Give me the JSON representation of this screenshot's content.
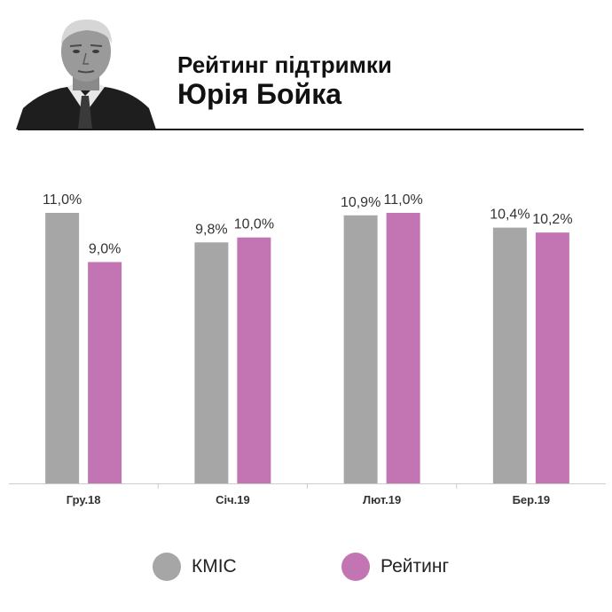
{
  "header": {
    "title_line1": "Рейтинг підтримки",
    "title_line2": "Юрія Бойка"
  },
  "colors": {
    "kmis": "#a6a6a6",
    "rating": "#c374b3",
    "axis": "#cccccc",
    "text": "#333333"
  },
  "legend": {
    "kmis_label": "КМІС",
    "rating_label": "Рейтинг"
  },
  "chart_data": {
    "type": "bar",
    "title": "",
    "categories": [
      "Гру.18",
      "Січ.19",
      "Лют.19",
      "Бер.19"
    ],
    "series": [
      {
        "name": "КМІС",
        "values": [
          11.0,
          9.8,
          10.9,
          10.4
        ],
        "labels": [
          "11,0%",
          "9,8%",
          "10,9%",
          "10,4%"
        ]
      },
      {
        "name": "Рейтинг",
        "values": [
          9.0,
          10.0,
          11.0,
          10.2
        ],
        "labels": [
          "9,0%",
          "10,0%",
          "11,0%",
          "10,2%"
        ]
      }
    ],
    "ylim": [
      0,
      11.0
    ],
    "grid": false,
    "legend_position": "bottom"
  }
}
